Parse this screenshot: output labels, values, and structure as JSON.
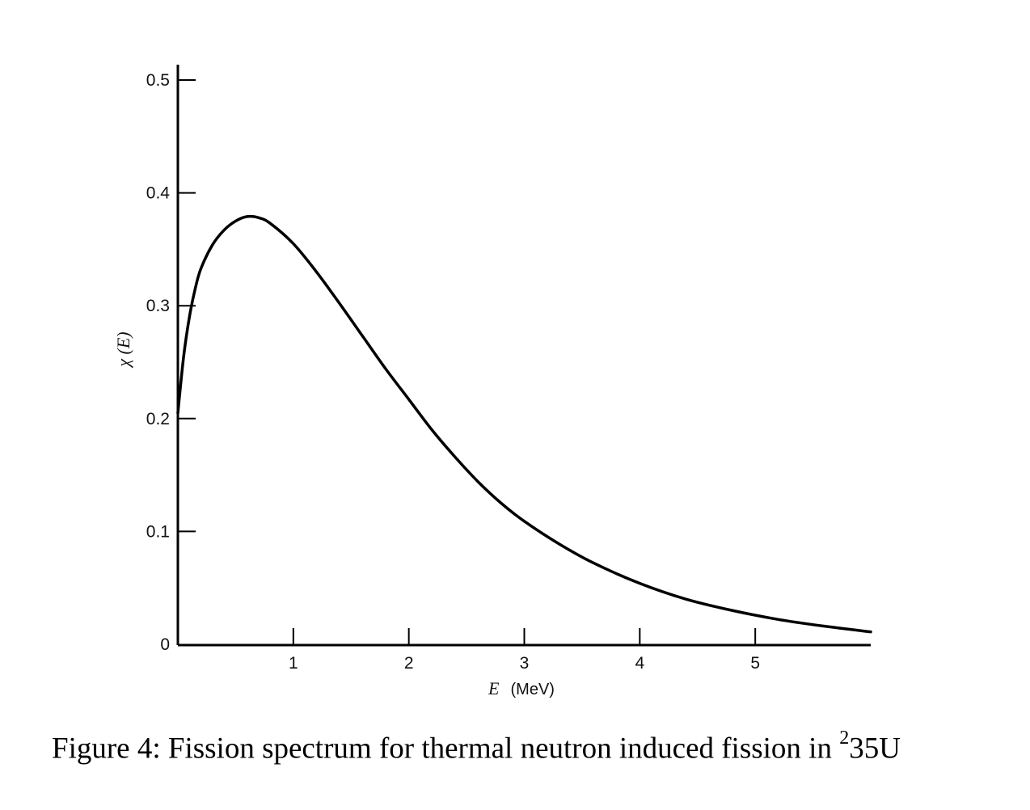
{
  "chart_data": {
    "type": "line",
    "xlabel_symbol": "E",
    "xlabel_unit": "(MeV)",
    "ylabel": "χ (E)",
    "xlim": [
      0,
      6
    ],
    "ylim": [
      0,
      0.5
    ],
    "x_ticks": [
      1,
      2,
      3,
      4,
      5
    ],
    "x_tick_labels": [
      "1",
      "2",
      "3",
      "4",
      "5"
    ],
    "y_ticks": [
      0,
      0.1,
      0.2,
      0.3,
      0.4,
      0.5
    ],
    "y_tick_labels": [
      "0",
      "0.1",
      "0.2",
      "0.3",
      "0.4",
      "0.5"
    ],
    "grid": false,
    "series": [
      {
        "x": [
          0.0,
          0.05,
          0.1,
          0.15,
          0.2,
          0.3,
          0.4,
          0.5,
          0.6,
          0.7,
          0.8,
          1.0,
          1.2,
          1.4,
          1.6,
          1.8,
          2.0,
          2.2,
          2.4,
          2.6,
          2.8,
          3.0,
          3.3,
          3.6,
          4.0,
          4.4,
          4.8,
          5.2,
          5.6,
          6.0
        ],
        "y": [
          0.205,
          0.255,
          0.29,
          0.315,
          0.333,
          0.354,
          0.367,
          0.375,
          0.379,
          0.378,
          0.373,
          0.355,
          0.33,
          0.302,
          0.273,
          0.244,
          0.217,
          0.19,
          0.166,
          0.144,
          0.125,
          0.109,
          0.089,
          0.072,
          0.054,
          0.04,
          0.03,
          0.022,
          0.016,
          0.011
        ],
        "color": "#000000"
      }
    ]
  },
  "caption": {
    "prefix": "Figure 4: Fission spectrum for thermal neutron induced fission in ",
    "superscript": "2",
    "suffix": "35U"
  }
}
